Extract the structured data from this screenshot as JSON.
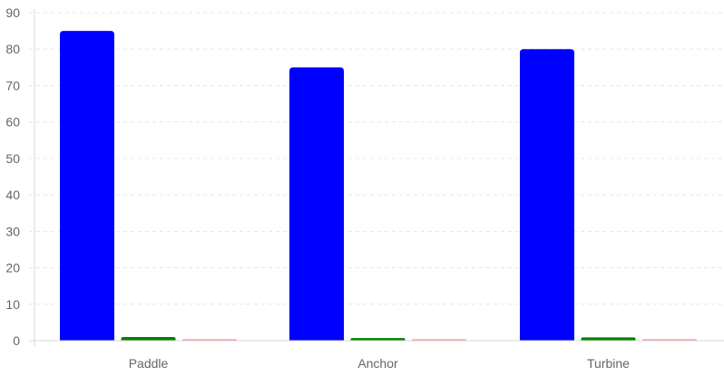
{
  "chart_data": {
    "type": "bar",
    "categories": [
      "Paddle",
      "Anchor",
      "Turbine"
    ],
    "series": [
      {
        "values": [
          85,
          75,
          80
        ],
        "color": "#0000ff"
      },
      {
        "values": [
          1,
          0.7,
          0.9
        ],
        "color": "#008000"
      },
      {
        "values": [
          0.3,
          0.3,
          0.3
        ],
        "color": "#ff8080"
      }
    ],
    "y_ticks": [
      "0",
      "10",
      "20",
      "30",
      "40",
      "50",
      "60",
      "70",
      "80",
      "90"
    ],
    "ylim": [
      0,
      90
    ],
    "grid": true,
    "grid_style": "dashed",
    "legend": "none",
    "title": "",
    "xlabel": "",
    "ylabel": ""
  }
}
